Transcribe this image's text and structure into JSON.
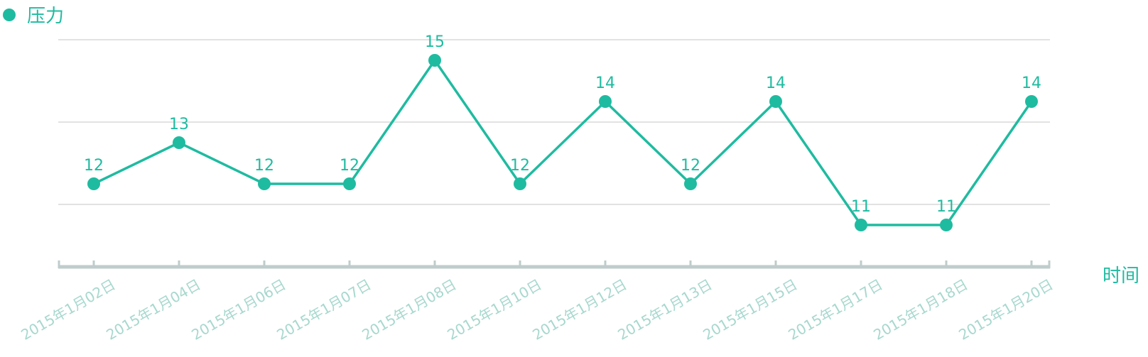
{
  "colors": {
    "series": "#1fbba0",
    "grid": "#d8d8d8",
    "axis": "#bfcccb",
    "tick_label": "#a7d8cd"
  },
  "legend": {
    "label": "压力"
  },
  "chart_data": {
    "type": "line",
    "categories": [
      "2015年1月02日",
      "2015年1月04日",
      "2015年1月06日",
      "2015年1月07日",
      "2015年1月08日",
      "2015年1月10日",
      "2015年1月12日",
      "2015年1月13日",
      "2015年1月15日",
      "2015年1月17日",
      "2015年1月18日",
      "2015年1月20日"
    ],
    "series": [
      {
        "name": "压力",
        "values": [
          12,
          13,
          12,
          12,
          15,
          12,
          14,
          12,
          14,
          11,
          11,
          14
        ]
      }
    ],
    "xlabel": "时间",
    "ylabel": "",
    "ylim": [
      10,
      15
    ],
    "grid": true,
    "legend_position": "top-left",
    "data_labels": true
  }
}
